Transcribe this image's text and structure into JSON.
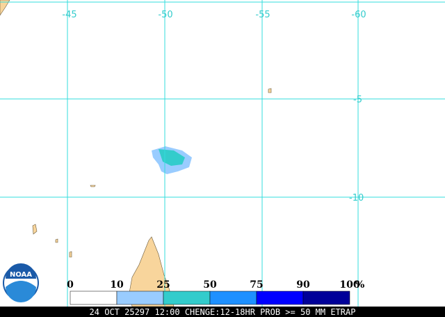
{
  "map": {
    "lon_labels": [
      "-45",
      "-50",
      "-55",
      "-60"
    ],
    "lat_labels": [
      "-5",
      "-10"
    ],
    "logo": "NOAA",
    "legend": {
      "ticks": [
        "0",
        "10",
        "25",
        "50",
        "75",
        "90",
        "100"
      ],
      "unit": "%",
      "colors": [
        "#ffffff",
        "#99ccff",
        "#33cccc",
        "#1e90ff",
        "#0000ff",
        "#000099"
      ]
    },
    "caption": "24 OCT 25297 12:00 CHENGE:12-18HR PROB >= 50 MM ETRAP"
  }
}
